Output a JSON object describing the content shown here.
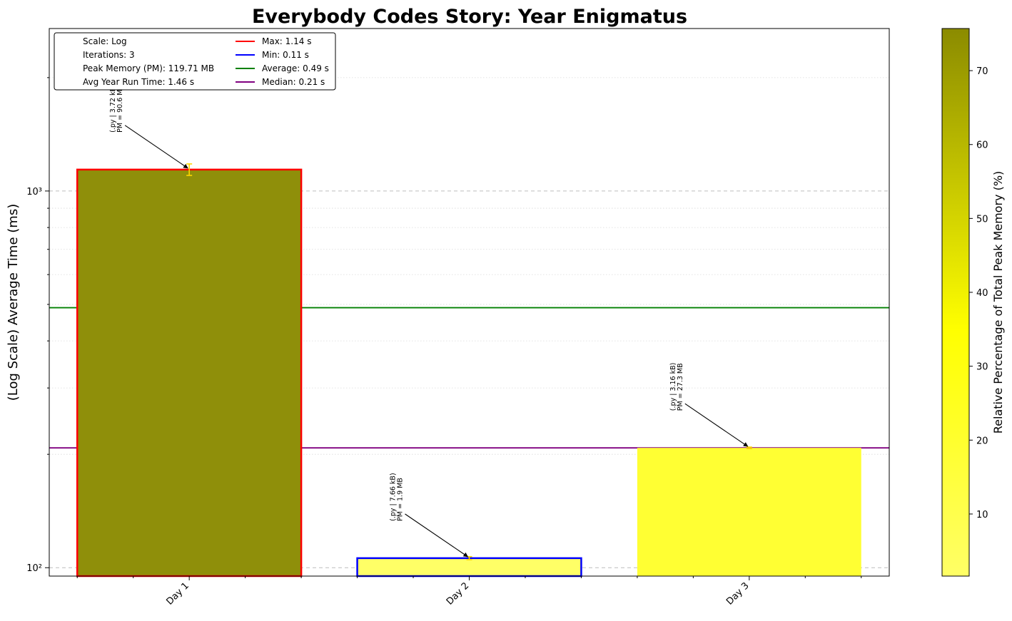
{
  "chart_data": {
    "type": "bar",
    "title": "Everybody Codes Story: Year Enigmatus",
    "ylabel": "(Log Scale) Average Time (ms)",
    "xlabel": "",
    "yscale": "log",
    "ylim": [
      95,
      2700
    ],
    "y_tick_labels": [
      {
        "value": 100,
        "label": "10²"
      },
      {
        "value": 1000,
        "label": "10³"
      }
    ],
    "categories": [
      "Day 1",
      "Day 2",
      "Day 3"
    ],
    "values": [
      1140,
      106,
      208
    ],
    "error_bars": [
      {
        "low": 1100,
        "high": 1180
      },
      {
        "low": 105,
        "high": 107
      },
      {
        "low": 207,
        "high": 209
      }
    ],
    "bar_colors": [
      "#8f8f0a",
      "#ffff66",
      "#ffff33"
    ],
    "bar_edge_colors": [
      "#ff0000",
      "#0000ff",
      "none"
    ],
    "annotations": [
      {
        "line1": "(.py | 3.72 kB)",
        "line2": "PM = 90.6 MB"
      },
      {
        "line1": "(.py | 7.66 kB)",
        "line2": "PM = 1.9 MB"
      },
      {
        "line1": "(.py | 3.16 kB)",
        "line2": "PM = 27.3 MB"
      }
    ],
    "reference_lines": [
      {
        "name": "Average",
        "value": 490,
        "color": "#008000"
      },
      {
        "name": "Median",
        "value": 208,
        "color": "#800080"
      }
    ],
    "grid": true,
    "legend_position": "top-left",
    "legend": {
      "info": [
        "Scale: Log",
        "Iterations: 3",
        "Peak Memory (PM): 119.71 MB",
        "Avg Year Run Time: 1.46 s"
      ],
      "lines": [
        {
          "label": "Max: 1.14 s",
          "color": "#ff0000"
        },
        {
          "label": "Min: 0.11 s",
          "color": "#0000ff"
        },
        {
          "label": "Average: 0.49 s",
          "color": "#008000"
        },
        {
          "label": "Median: 0.21 s",
          "color": "#800080"
        }
      ]
    },
    "colorbar": {
      "label": "Relative Percentage of Total Peak Memory (%)",
      "range": [
        1.6,
        75.7
      ],
      "ticks": [
        10,
        20,
        30,
        40,
        50,
        60,
        70
      ],
      "colors": [
        "#ffff66",
        "#ffff00",
        "#8b8b00"
      ]
    }
  }
}
